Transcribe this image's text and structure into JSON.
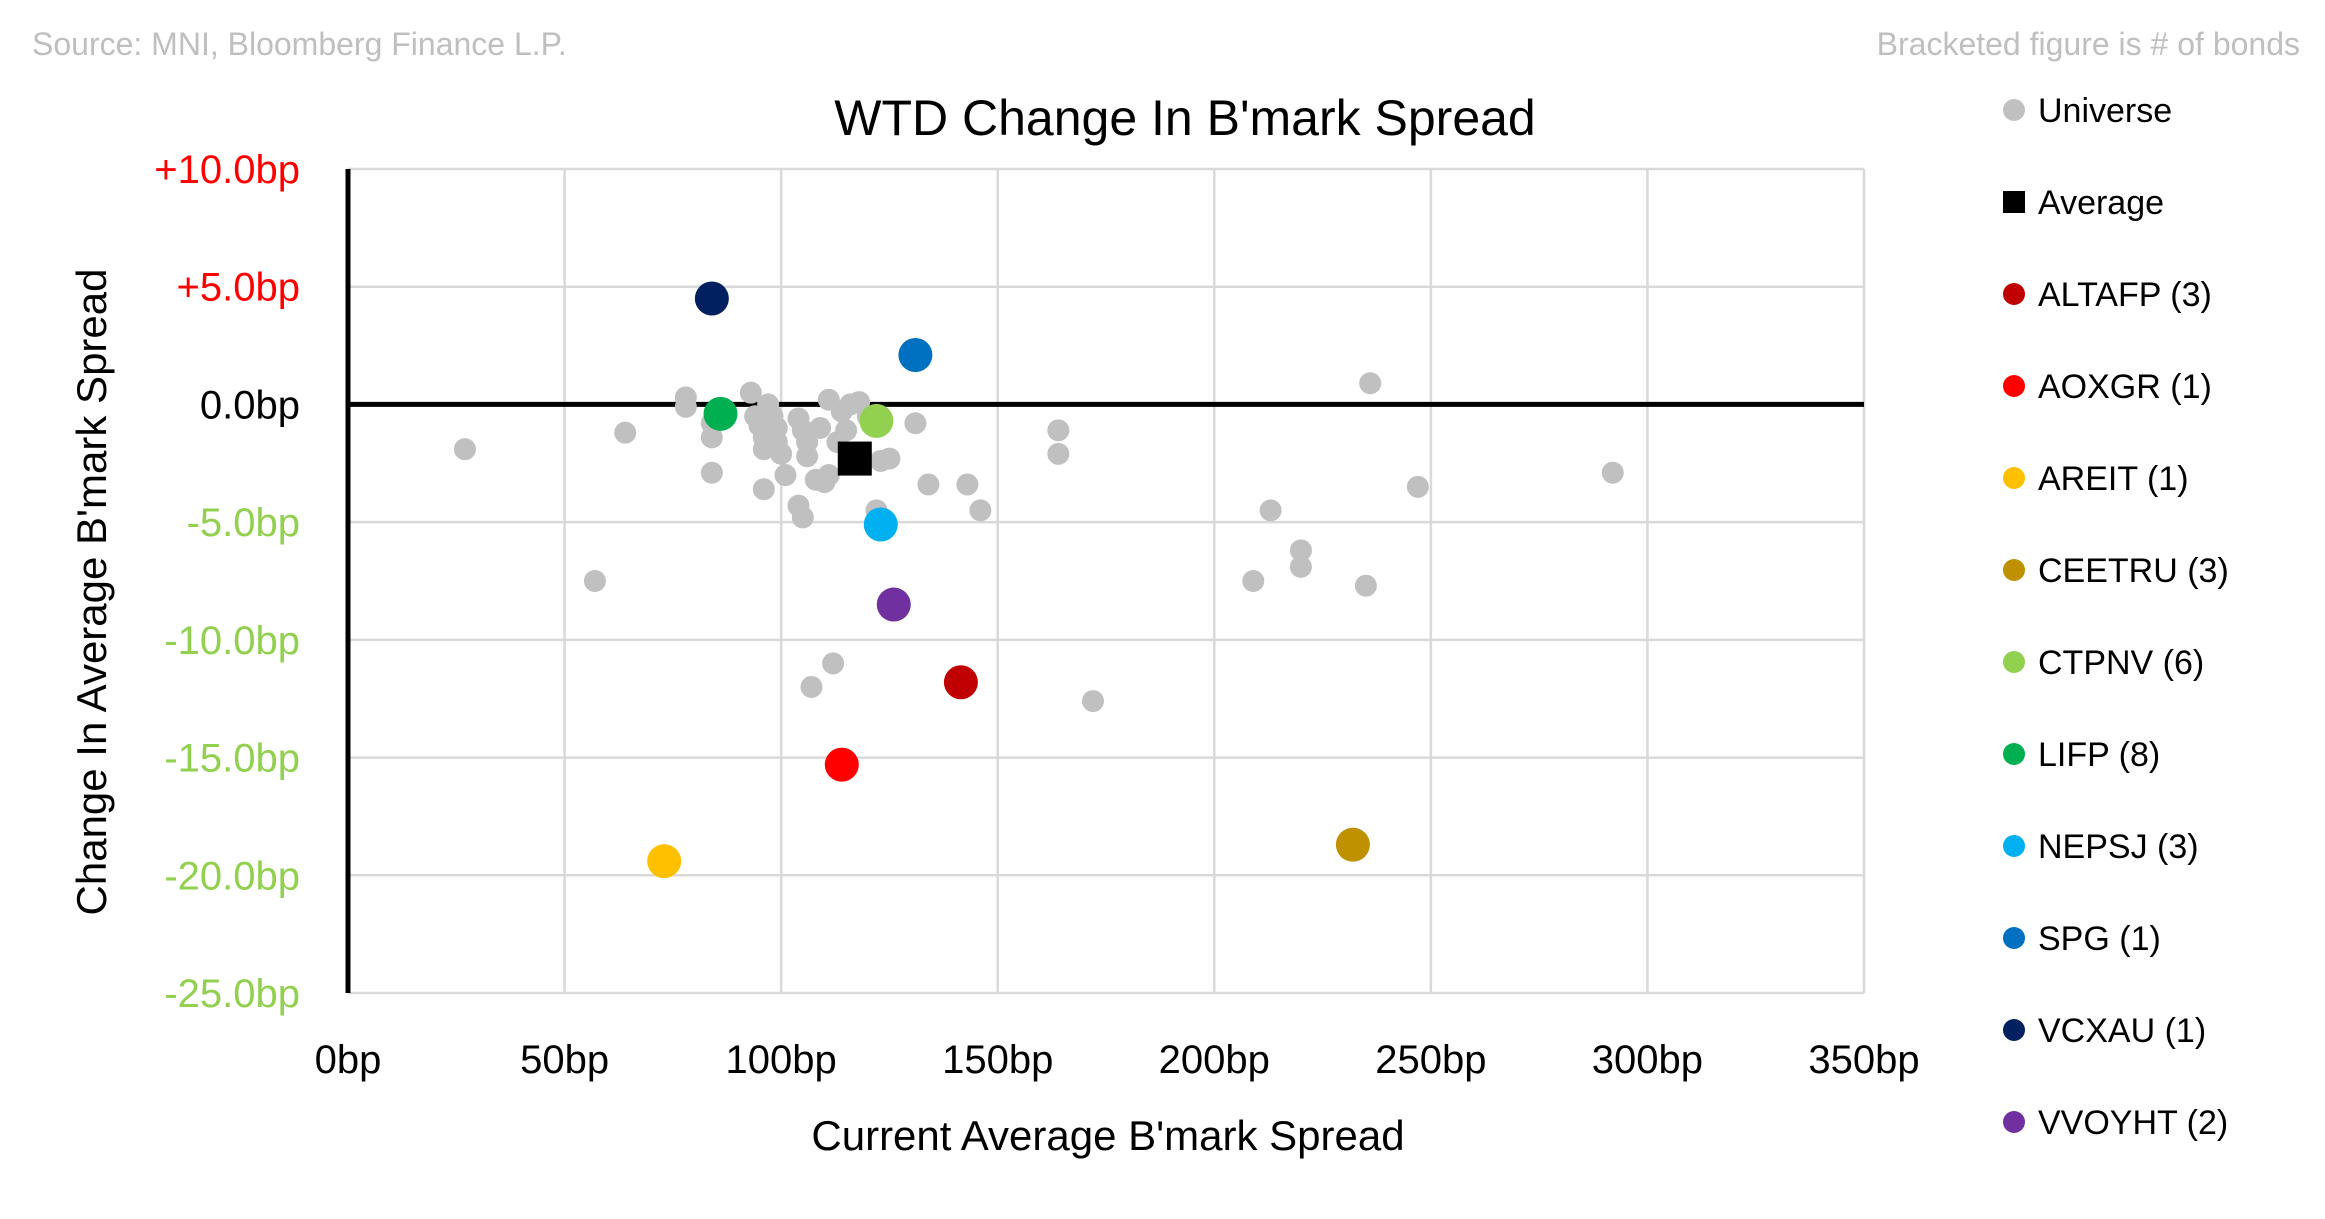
{
  "source_note": "Source: MNI, Bloomberg Finance L.P.",
  "bracket_note": "Bracketed figure is # of bonds",
  "colors": {
    "universe": "#c0c0c0",
    "average": "#000000",
    "pos_tick": "#ff0000",
    "neg_tick": "#92d050"
  },
  "chart_data": {
    "type": "scatter",
    "title": "WTD Change In B'mark Spread",
    "xlabel": "Current Average B'mark Spread",
    "ylabel": "Change In Average B'mark Spread",
    "xlim": [
      0,
      350
    ],
    "ylim": [
      -25,
      10
    ],
    "x_ticks": [
      0,
      50,
      100,
      150,
      200,
      250,
      300,
      350
    ],
    "y_ticks": [
      10,
      5,
      0,
      -5,
      -10,
      -15,
      -20,
      -25
    ],
    "x_tick_labels": [
      "0bp",
      "50bp",
      "100bp",
      "150bp",
      "200bp",
      "250bp",
      "300bp",
      "350bp"
    ],
    "y_tick_labels": [
      "+10.0bp",
      "+5.0bp",
      "0.0bp",
      "-5.0bp",
      "-10.0bp",
      "-15.0bp",
      "-20.0bp",
      "-25.0bp"
    ],
    "legend_position": "right",
    "series": [
      {
        "name": "Universe",
        "marker": "circle-small",
        "color": "#c0c0c0",
        "points": [
          [
            27,
            -1.9
          ],
          [
            57,
            -7.5
          ],
          [
            64,
            -1.2
          ],
          [
            78,
            0.3
          ],
          [
            78,
            -0.1
          ],
          [
            84,
            -0.8
          ],
          [
            84,
            -1.4
          ],
          [
            84,
            -2.9
          ],
          [
            93,
            0.5
          ],
          [
            94,
            -0.5
          ],
          [
            95,
            -0.9
          ],
          [
            96,
            -1.4
          ],
          [
            96,
            -1.9
          ],
          [
            96,
            -3.6
          ],
          [
            97,
            0.0
          ],
          [
            98,
            -0.5
          ],
          [
            99,
            -1.0
          ],
          [
            99,
            -1.6
          ],
          [
            100,
            -2.1
          ],
          [
            101,
            -3.0
          ],
          [
            104,
            -4.3
          ],
          [
            104,
            -0.6
          ],
          [
            105,
            -1.1
          ],
          [
            106,
            -1.6
          ],
          [
            106,
            -2.2
          ],
          [
            105,
            -4.8
          ],
          [
            107,
            -12.0
          ],
          [
            108,
            -3.2
          ],
          [
            109,
            -1.0
          ],
          [
            110,
            -3.3
          ],
          [
            111,
            0.2
          ],
          [
            111,
            -3.0
          ],
          [
            112,
            -11.0
          ],
          [
            113,
            -1.6
          ],
          [
            114,
            -0.3
          ],
          [
            115,
            -1.1
          ],
          [
            116,
            0.0
          ],
          [
            118,
            0.1
          ],
          [
            120,
            -0.5
          ],
          [
            122,
            -4.5
          ],
          [
            123,
            -2.4
          ],
          [
            125,
            -2.3
          ],
          [
            131,
            -0.8
          ],
          [
            134,
            -3.4
          ],
          [
            143,
            -3.4
          ],
          [
            146,
            -4.5
          ],
          [
            164,
            -1.1
          ],
          [
            164,
            -2.1
          ],
          [
            172,
            -12.6
          ],
          [
            209,
            -7.5
          ],
          [
            213,
            -4.5
          ],
          [
            220,
            -6.2
          ],
          [
            220,
            -6.9
          ],
          [
            235,
            -7.7
          ],
          [
            236,
            0.9
          ],
          [
            247,
            -3.5
          ],
          [
            292,
            -2.9
          ]
        ]
      },
      {
        "name": "Average",
        "marker": "square",
        "color": "#000000",
        "points": [
          [
            117,
            -2.3
          ]
        ]
      },
      {
        "name": "ALTAFP",
        "count": "(3)",
        "marker": "circle",
        "color": "#c00000",
        "points": [
          [
            141.5,
            -11.8
          ]
        ]
      },
      {
        "name": "AOXGR",
        "count": "(1)",
        "marker": "circle",
        "color": "#ff0000",
        "points": [
          [
            114,
            -15.3
          ]
        ]
      },
      {
        "name": "AREIT",
        "count": "(1)",
        "marker": "circle",
        "color": "#ffc000",
        "points": [
          [
            73,
            -19.4
          ]
        ]
      },
      {
        "name": "CEETRU",
        "count": "(3)",
        "marker": "circle",
        "color": "#bf9000",
        "points": [
          [
            232,
            -18.7
          ]
        ]
      },
      {
        "name": "CTPNV",
        "count": "(6)",
        "marker": "circle",
        "color": "#92d050",
        "points": [
          [
            122,
            -0.7
          ]
        ]
      },
      {
        "name": "LIFP",
        "count": "(8)",
        "marker": "circle",
        "color": "#00b050",
        "points": [
          [
            86,
            -0.4
          ]
        ]
      },
      {
        "name": "NEPSJ",
        "count": "(3)",
        "marker": "circle",
        "color": "#00b0f0",
        "points": [
          [
            123,
            -5.1
          ]
        ]
      },
      {
        "name": "SPG",
        "count": "(1)",
        "marker": "circle",
        "color": "#0070c0",
        "points": [
          [
            131,
            2.1
          ]
        ]
      },
      {
        "name": "VCXAU",
        "count": "(1)",
        "marker": "circle",
        "color": "#002060",
        "points": [
          [
            84,
            4.5
          ]
        ]
      },
      {
        "name": "VVOYHT",
        "count": "(2)",
        "marker": "circle",
        "color": "#7030a0",
        "points": [
          [
            126,
            -8.5
          ]
        ]
      }
    ]
  }
}
